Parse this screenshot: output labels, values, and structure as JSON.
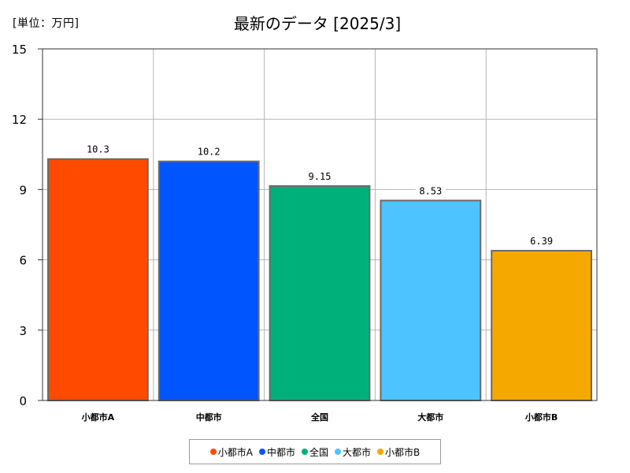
{
  "unit_label": "[単位：万円]",
  "title": "最新のデータ [2025/3]",
  "chart_data": {
    "type": "bar",
    "title": "最新のデータ [2025/3]",
    "unit": "[単位：万円]",
    "categories": [
      "小都市A",
      "中都市",
      "全国",
      "大都市",
      "小都市B"
    ],
    "values": [
      10.3,
      10.2,
      9.15,
      8.53,
      6.39
    ],
    "value_labels": [
      "10.3",
      "10.2",
      "9.15",
      "8.53",
      "6.39"
    ],
    "colors": [
      "#ff4a00",
      "#0055ff",
      "#00b07a",
      "#4dc4ff",
      "#f5a800"
    ],
    "ylim": [
      0,
      15
    ],
    "yticks": [
      0,
      3,
      6,
      9,
      12,
      15
    ],
    "grid": true,
    "legend_position": "bottom"
  }
}
